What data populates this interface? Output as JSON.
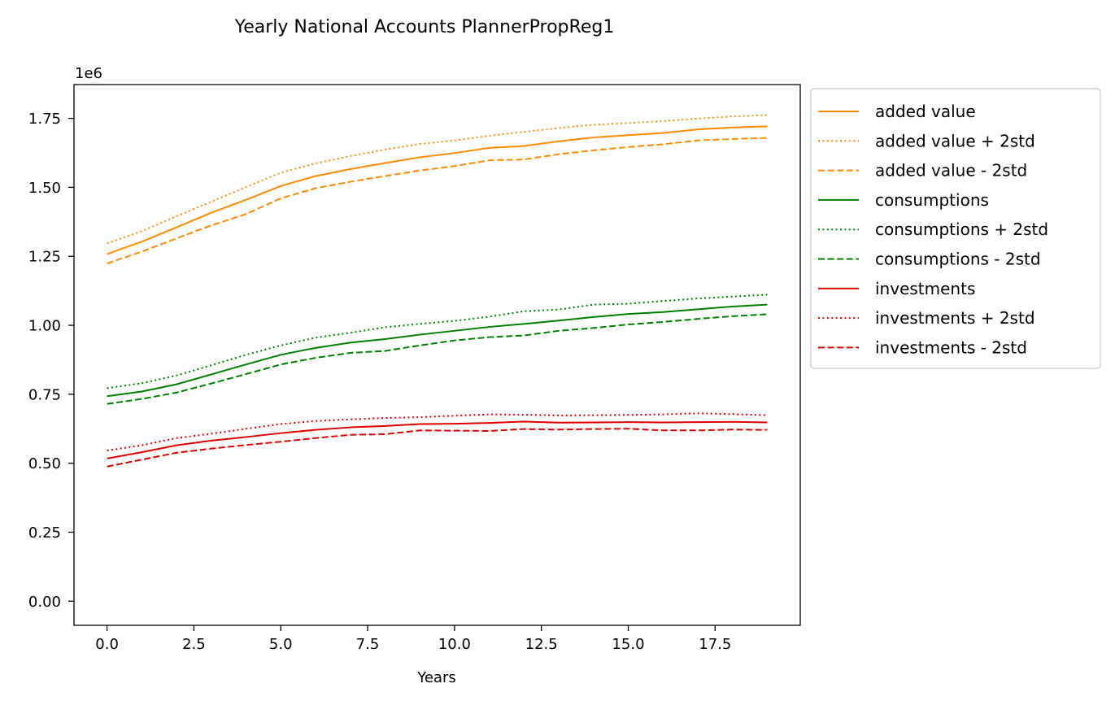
{
  "chart_data": {
    "type": "line",
    "title": "Yearly National Accounts PlannerPropReg1",
    "xlabel": "Years",
    "ylabel": "",
    "y_offset_label": "1e6",
    "xlim": [
      -0.95,
      19.95
    ],
    "ylim": [
      -0.0875,
      1.8725
    ],
    "y_scale_factor": 1000000,
    "x_ticks": [
      0.0,
      2.5,
      5.0,
      7.5,
      10.0,
      12.5,
      15.0,
      17.5
    ],
    "x_tick_labels": [
      "0.0",
      "2.5",
      "5.0",
      "7.5",
      "10.0",
      "12.5",
      "15.0",
      "17.5"
    ],
    "y_ticks": [
      0.0,
      0.25,
      0.5,
      0.75,
      1.0,
      1.25,
      1.5,
      1.75
    ],
    "y_tick_labels": [
      "0.00",
      "0.25",
      "0.50",
      "0.75",
      "1.00",
      "1.25",
      "1.50",
      "1.75"
    ],
    "grid": false,
    "legend_position": "outside-right-top",
    "x": [
      0,
      1,
      2,
      3,
      4,
      5,
      6,
      7,
      8,
      9,
      10,
      11,
      12,
      13,
      14,
      15,
      16,
      17,
      18,
      19
    ],
    "series": [
      {
        "name": "added value",
        "color": "#ff8c00",
        "style": "solid",
        "values": [
          1.258,
          1.303,
          1.355,
          1.408,
          1.455,
          1.505,
          1.541,
          1.566,
          1.588,
          1.609,
          1.624,
          1.643,
          1.65,
          1.667,
          1.681,
          1.689,
          1.697,
          1.71,
          1.717,
          1.721
        ]
      },
      {
        "name": "added value + 2std",
        "color": "#ff8c00",
        "style": "dotted",
        "values": [
          1.297,
          1.341,
          1.395,
          1.448,
          1.501,
          1.553,
          1.587,
          1.613,
          1.637,
          1.657,
          1.67,
          1.687,
          1.701,
          1.715,
          1.727,
          1.733,
          1.74,
          1.749,
          1.757,
          1.762
        ]
      },
      {
        "name": "added value - 2std",
        "color": "#ff8c00",
        "style": "dashed",
        "values": [
          1.224,
          1.267,
          1.315,
          1.362,
          1.403,
          1.46,
          1.497,
          1.52,
          1.541,
          1.561,
          1.577,
          1.598,
          1.601,
          1.62,
          1.634,
          1.646,
          1.656,
          1.67,
          1.675,
          1.679
        ]
      },
      {
        "name": "consumptions",
        "color": "#008000",
        "style": "solid",
        "values": [
          0.743,
          0.76,
          0.786,
          0.822,
          0.858,
          0.893,
          0.918,
          0.937,
          0.95,
          0.966,
          0.98,
          0.994,
          1.005,
          1.017,
          1.03,
          1.041,
          1.048,
          1.058,
          1.068,
          1.075
        ]
      },
      {
        "name": "consumptions + 2std",
        "color": "#008000",
        "style": "dotted",
        "values": [
          0.772,
          0.79,
          0.818,
          0.855,
          0.893,
          0.927,
          0.955,
          0.973,
          0.993,
          1.005,
          1.016,
          1.031,
          1.051,
          1.057,
          1.075,
          1.078,
          1.088,
          1.097,
          1.104,
          1.111
        ]
      },
      {
        "name": "consumptions - 2std",
        "color": "#008000",
        "style": "dashed",
        "values": [
          0.715,
          0.733,
          0.756,
          0.789,
          0.823,
          0.858,
          0.882,
          0.9,
          0.907,
          0.927,
          0.945,
          0.957,
          0.963,
          0.98,
          0.99,
          1.003,
          1.012,
          1.023,
          1.033,
          1.04
        ]
      },
      {
        "name": "investments",
        "color": "#e00000",
        "style": "solid",
        "values": [
          0.517,
          0.54,
          0.565,
          0.582,
          0.595,
          0.609,
          0.621,
          0.63,
          0.635,
          0.642,
          0.643,
          0.646,
          0.651,
          0.647,
          0.648,
          0.649,
          0.648,
          0.649,
          0.65,
          0.648
        ]
      },
      {
        "name": "investments + 2std",
        "color": "#e00000",
        "style": "dotted",
        "values": [
          0.546,
          0.565,
          0.591,
          0.607,
          0.625,
          0.642,
          0.653,
          0.659,
          0.664,
          0.667,
          0.672,
          0.677,
          0.676,
          0.673,
          0.674,
          0.675,
          0.677,
          0.681,
          0.678,
          0.674
        ]
      },
      {
        "name": "investments - 2std",
        "color": "#e00000",
        "style": "dashed",
        "values": [
          0.488,
          0.513,
          0.538,
          0.553,
          0.566,
          0.578,
          0.591,
          0.603,
          0.605,
          0.619,
          0.618,
          0.617,
          0.624,
          0.622,
          0.624,
          0.625,
          0.619,
          0.619,
          0.622,
          0.621
        ]
      }
    ]
  }
}
